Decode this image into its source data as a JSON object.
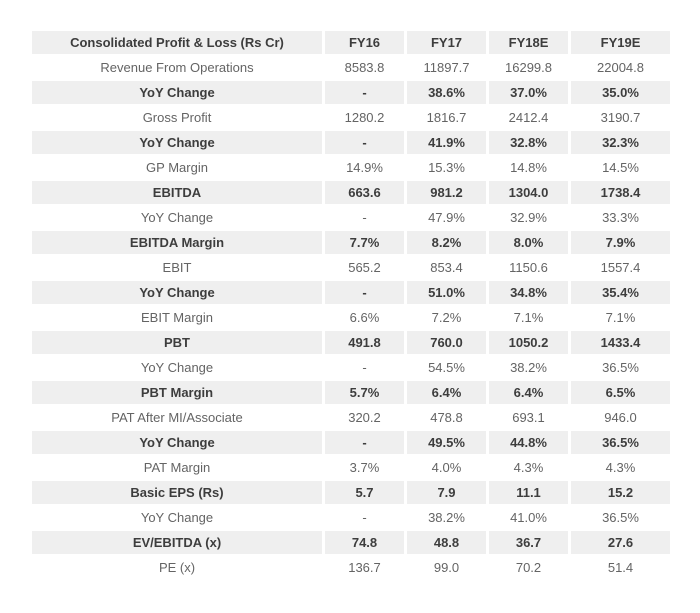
{
  "table": {
    "title": "Consolidated Profit & Loss (Rs Cr)",
    "columns": [
      "FY16",
      "FY17",
      "FY18E",
      "FY19E"
    ],
    "rows": [
      {
        "label": "Revenue From Operations",
        "values": [
          "8583.8",
          "11897.7",
          "16299.8",
          "22004.8"
        ],
        "emphasis": false
      },
      {
        "label": "YoY Change",
        "values": [
          "-",
          "38.6%",
          "37.0%",
          "35.0%"
        ],
        "emphasis": true
      },
      {
        "label": "Gross Profit",
        "values": [
          "1280.2",
          "1816.7",
          "2412.4",
          "3190.7"
        ],
        "emphasis": false
      },
      {
        "label": "YoY Change",
        "values": [
          "-",
          "41.9%",
          "32.8%",
          "32.3%"
        ],
        "emphasis": true
      },
      {
        "label": "GP Margin",
        "values": [
          "14.9%",
          "15.3%",
          "14.8%",
          "14.5%"
        ],
        "emphasis": false
      },
      {
        "label": "EBITDA",
        "values": [
          "663.6",
          "981.2",
          "1304.0",
          "1738.4"
        ],
        "emphasis": true
      },
      {
        "label": "YoY Change",
        "values": [
          "-",
          "47.9%",
          "32.9%",
          "33.3%"
        ],
        "emphasis": false
      },
      {
        "label": "EBITDA Margin",
        "values": [
          "7.7%",
          "8.2%",
          "8.0%",
          "7.9%"
        ],
        "emphasis": true
      },
      {
        "label": "EBIT",
        "values": [
          "565.2",
          "853.4",
          "1150.6",
          "1557.4"
        ],
        "emphasis": false
      },
      {
        "label": "YoY Change",
        "values": [
          "-",
          "51.0%",
          "34.8%",
          "35.4%"
        ],
        "emphasis": true
      },
      {
        "label": "EBIT Margin",
        "values": [
          "6.6%",
          "7.2%",
          "7.1%",
          "7.1%"
        ],
        "emphasis": false
      },
      {
        "label": "PBT",
        "values": [
          "491.8",
          "760.0",
          "1050.2",
          "1433.4"
        ],
        "emphasis": true
      },
      {
        "label": "YoY Change",
        "values": [
          "-",
          "54.5%",
          "38.2%",
          "36.5%"
        ],
        "emphasis": false
      },
      {
        "label": "PBT Margin",
        "values": [
          "5.7%",
          "6.4%",
          "6.4%",
          "6.5%"
        ],
        "emphasis": true
      },
      {
        "label": "PAT After MI/Associate",
        "values": [
          "320.2",
          "478.8",
          "693.1",
          "946.0"
        ],
        "emphasis": false
      },
      {
        "label": "YoY Change",
        "values": [
          "-",
          "49.5%",
          "44.8%",
          "36.5%"
        ],
        "emphasis": true
      },
      {
        "label": "PAT Margin",
        "values": [
          "3.7%",
          "4.0%",
          "4.3%",
          "4.3%"
        ],
        "emphasis": false
      },
      {
        "label": "Basic EPS (Rs)",
        "values": [
          "5.7",
          "7.9",
          "11.1",
          "15.2"
        ],
        "emphasis": true
      },
      {
        "label": "YoY Change",
        "values": [
          "-",
          "38.2%",
          "41.0%",
          "36.5%"
        ],
        "emphasis": false
      },
      {
        "label": "EV/EBITDA (x)",
        "values": [
          "74.8",
          "48.8",
          "36.7",
          "27.6"
        ],
        "emphasis": true
      },
      {
        "label": "PE (x)",
        "values": [
          "136.7",
          "99.0",
          "70.2",
          "51.4"
        ],
        "emphasis": false
      }
    ],
    "colors": {
      "row_shade": "#efefef",
      "emphasis_text": "#3d3d3d",
      "normal_text": "#646464",
      "background": "#ffffff"
    }
  }
}
